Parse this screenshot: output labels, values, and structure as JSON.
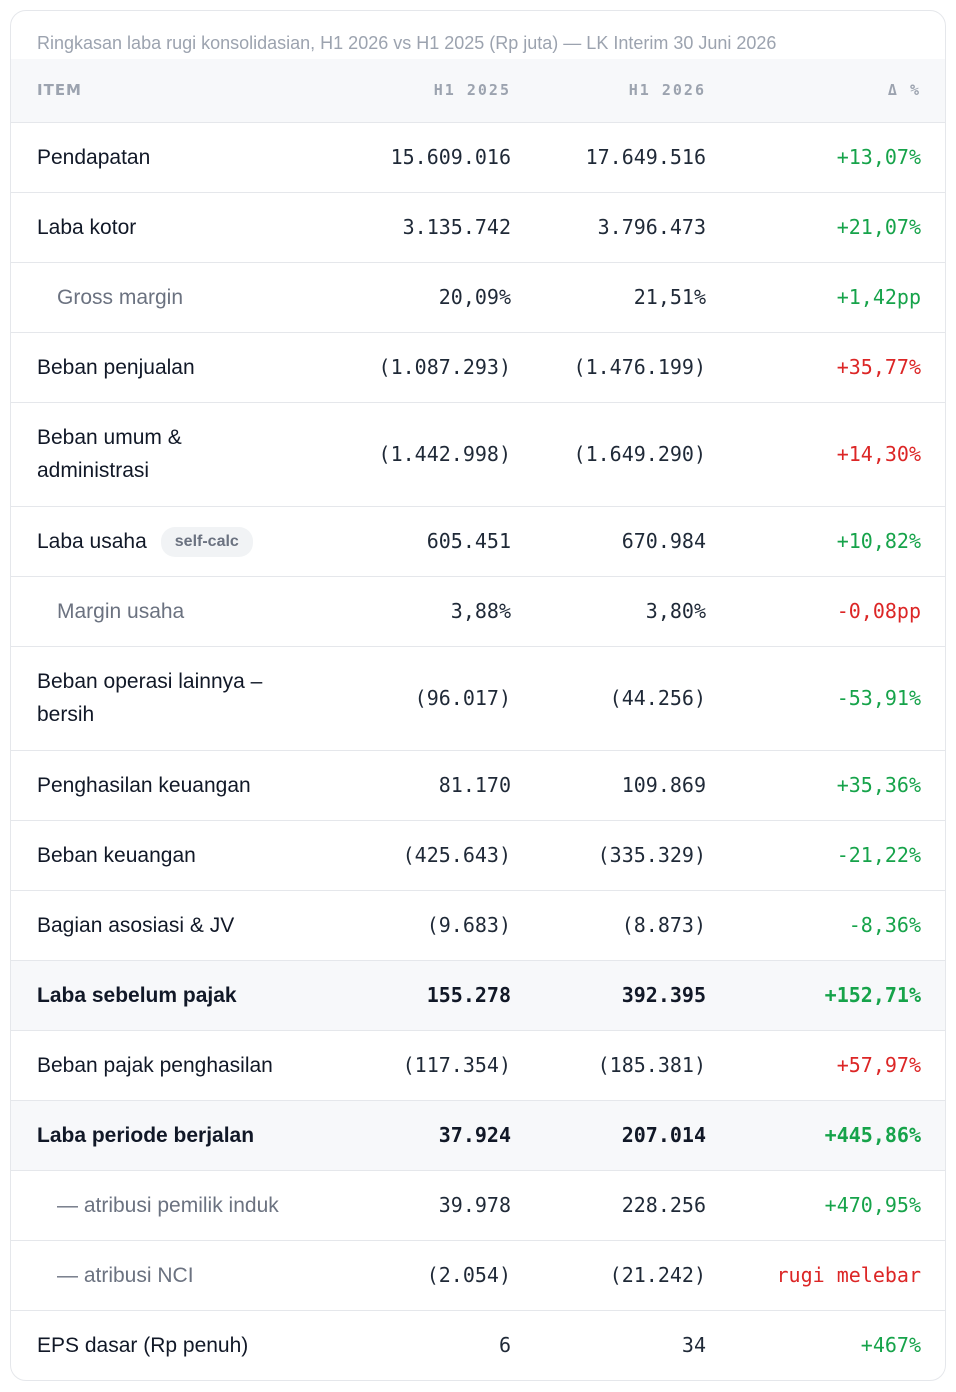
{
  "caption": "Ringkasan laba rugi konsolidasian, H1 2026 vs H1 2025 (Rp juta) — LK Interim 30 Juni 2026",
  "header": {
    "item": "ITEM",
    "h1_2025": "H1 2025",
    "h1_2026": "H1 2026",
    "delta": "Δ %"
  },
  "colors": {
    "positive": "#16a34a",
    "negative": "#dc2626"
  },
  "rows": [
    {
      "label": "Pendapatan",
      "h1_2025": "15.609.016",
      "h1_2026": "17.649.516",
      "delta": "+13,07%"
    },
    {
      "label": "Laba kotor",
      "h1_2025": "3.135.742",
      "h1_2026": "3.796.473",
      "delta": "+21,07%"
    },
    {
      "label": "Gross margin",
      "h1_2025": "20,09%",
      "h1_2026": "21,51%",
      "delta": "+1,42pp"
    },
    {
      "label": "Beban penjualan",
      "h1_2025": "(1.087.293)",
      "h1_2026": "(1.476.199)",
      "delta": "+35,77%"
    },
    {
      "label": "Beban umum & administrasi",
      "h1_2025": "(1.442.998)",
      "h1_2026": "(1.649.290)",
      "delta": "+14,30%"
    },
    {
      "label": "Laba usaha",
      "badge": "self-calc",
      "h1_2025": "605.451",
      "h1_2026": "670.984",
      "delta": "+10,82%"
    },
    {
      "label": "Margin usaha",
      "h1_2025": "3,88%",
      "h1_2026": "3,80%",
      "delta": "-0,08pp"
    },
    {
      "label": "Beban operasi lainnya – bersih",
      "h1_2025": "(96.017)",
      "h1_2026": "(44.256)",
      "delta": "-53,91%"
    },
    {
      "label": "Penghasilan keuangan",
      "h1_2025": "81.170",
      "h1_2026": "109.869",
      "delta": "+35,36%"
    },
    {
      "label": "Beban keuangan",
      "h1_2025": "(425.643)",
      "h1_2026": "(335.329)",
      "delta": "-21,22%"
    },
    {
      "label": "Bagian asosiasi & JV",
      "h1_2025": "(9.683)",
      "h1_2026": "(8.873)",
      "delta": "-8,36%"
    },
    {
      "label": "Laba sebelum pajak",
      "h1_2025": "155.278",
      "h1_2026": "392.395",
      "delta": "+152,71%"
    },
    {
      "label": "Beban pajak penghasilan",
      "h1_2025": "(117.354)",
      "h1_2026": "(185.381)",
      "delta": "+57,97%"
    },
    {
      "label": "Laba periode berjalan",
      "h1_2025": "37.924",
      "h1_2026": "207.014",
      "delta": "+445,86%"
    },
    {
      "label": "— atribusi pemilik induk",
      "h1_2025": "39.978",
      "h1_2026": "228.256",
      "delta": "+470,95%"
    },
    {
      "label": "— atribusi NCI",
      "h1_2025": "(2.054)",
      "h1_2026": "(21.242)",
      "delta": "rugi melebar"
    },
    {
      "label": "EPS dasar (Rp penuh)",
      "h1_2025": "6",
      "h1_2026": "34",
      "delta": "+467%"
    }
  ]
}
